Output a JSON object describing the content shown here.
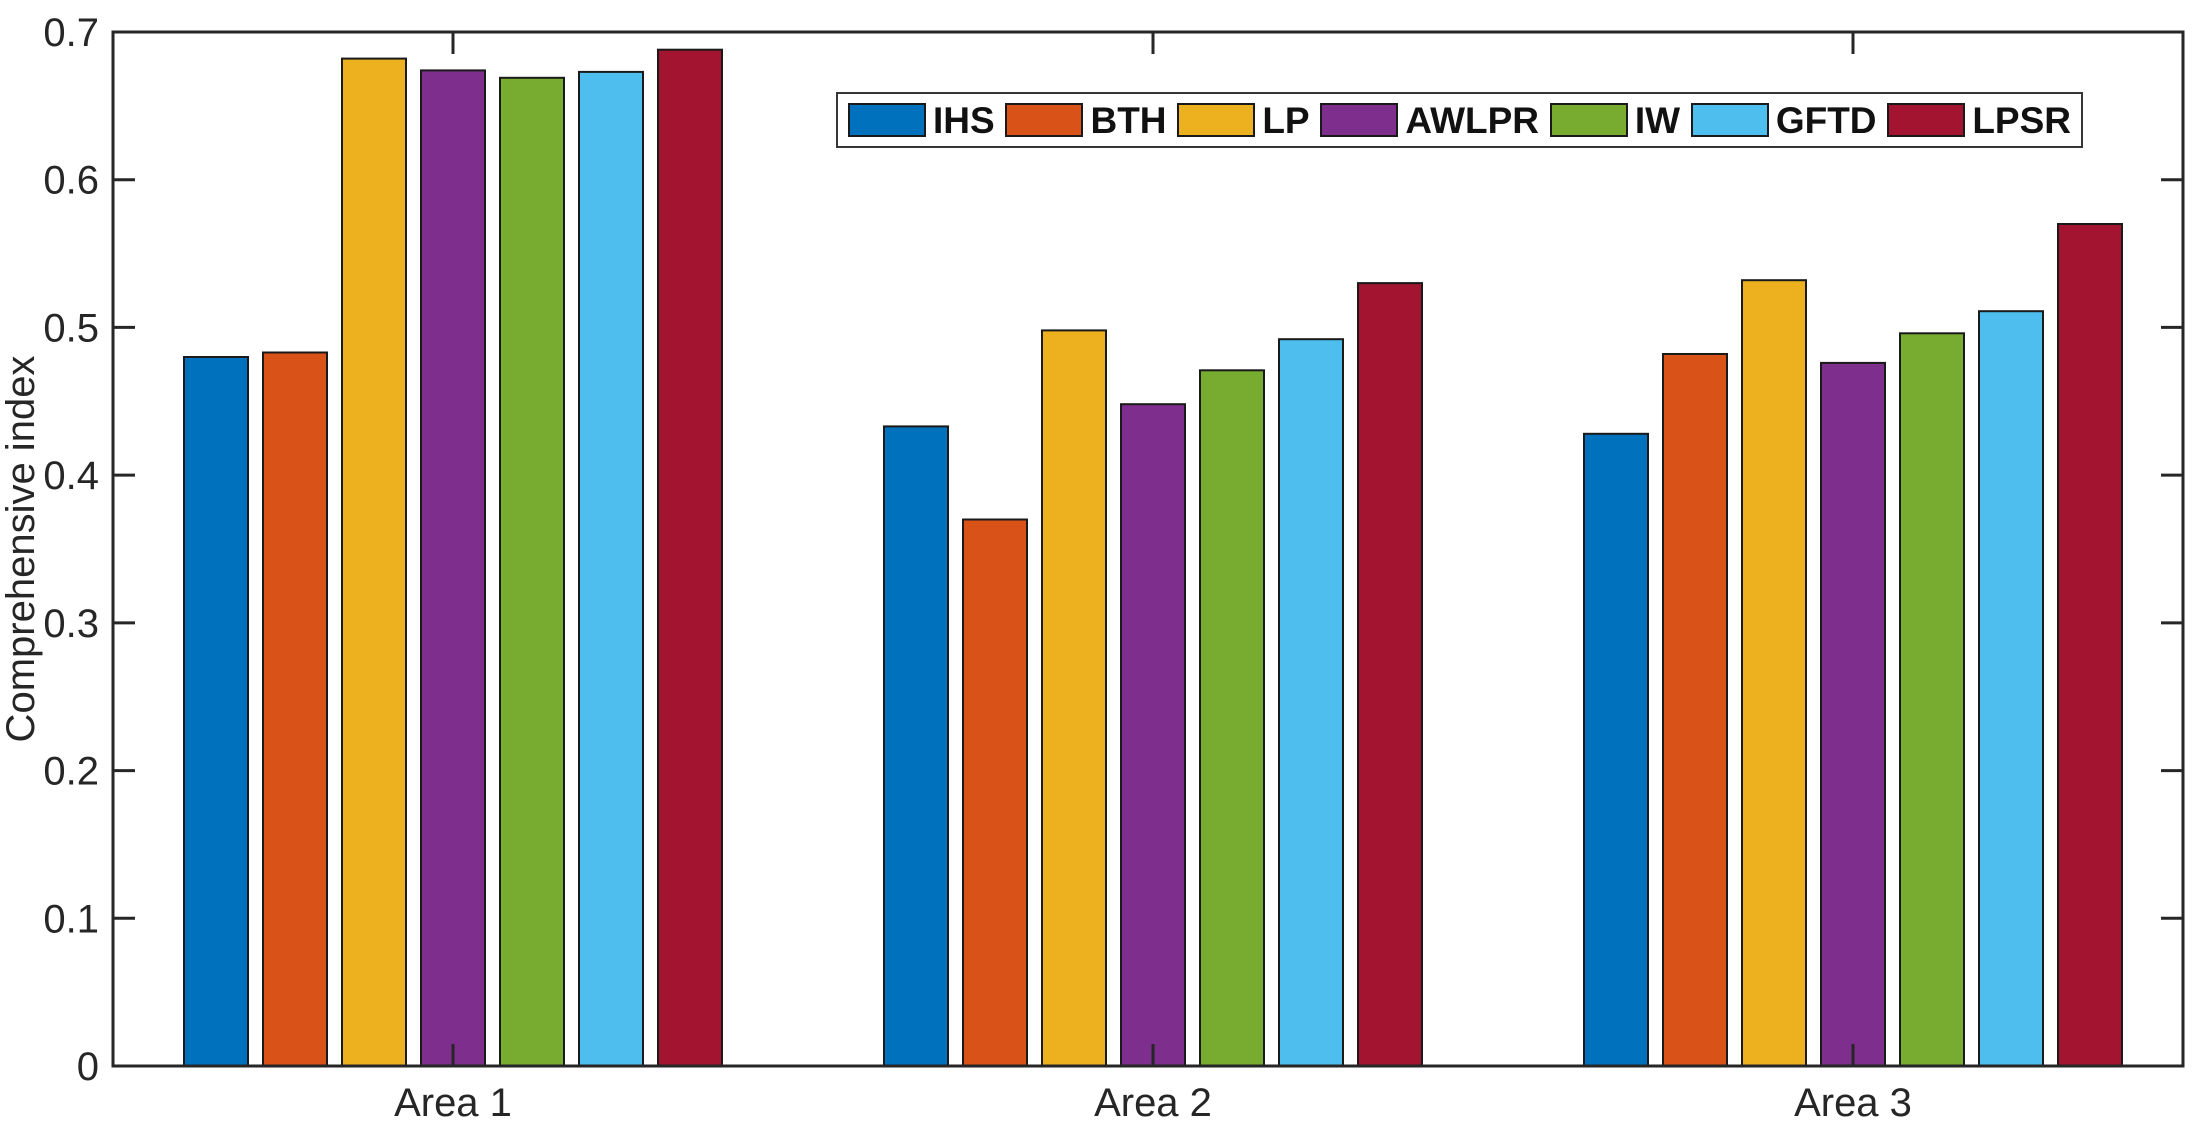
{
  "figure": {
    "background": "#ffffff",
    "axis_color": "#262626",
    "bar_edge_color": "#1a1a1a",
    "text_color": "#262626"
  },
  "chart_data": {
    "type": "bar",
    "title": "",
    "categories": [
      "Area 1",
      "Area 2",
      "Area 3"
    ],
    "series": [
      {
        "name": "IHS",
        "color": "#0072BD",
        "values": [
          0.48,
          0.433,
          0.428
        ]
      },
      {
        "name": "BTH",
        "color": "#D95319",
        "values": [
          0.483,
          0.37,
          0.482
        ]
      },
      {
        "name": "LP",
        "color": "#EDB120",
        "values": [
          0.682,
          0.498,
          0.532
        ]
      },
      {
        "name": "AWLPR",
        "color": "#7E2F8E",
        "values": [
          0.674,
          0.448,
          0.476
        ]
      },
      {
        "name": "IW",
        "color": "#77AC30",
        "values": [
          0.669,
          0.471,
          0.496
        ]
      },
      {
        "name": "GFTD",
        "color": "#4DBEEE",
        "values": [
          0.673,
          0.492,
          0.511
        ]
      },
      {
        "name": "LPSR",
        "color": "#A2142F",
        "values": [
          0.688,
          0.53,
          0.57
        ]
      }
    ],
    "xlabel": "",
    "ylabel": "Comprehensive index",
    "ylim": [
      0,
      0.7
    ],
    "yticks": [
      0,
      0.1,
      0.2,
      0.3,
      0.4,
      0.5,
      0.6,
      0.7
    ],
    "ytick_labels": [
      "0",
      "0.1",
      "0.2",
      "0.3",
      "0.4",
      "0.5",
      "0.6",
      "0.7"
    ],
    "grid": false,
    "legend_position": "north-horizontal"
  }
}
